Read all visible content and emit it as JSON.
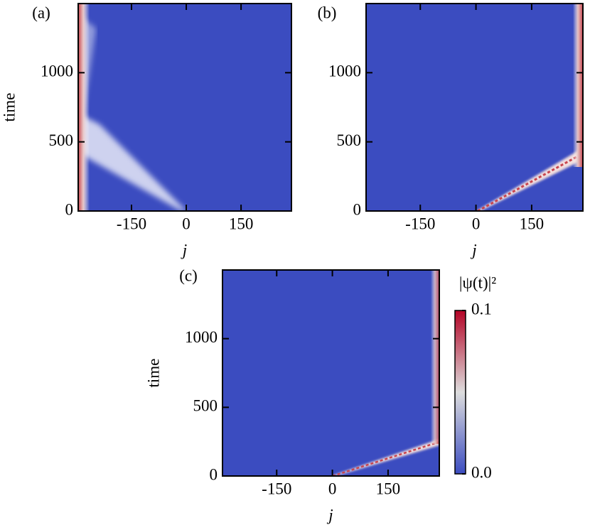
{
  "chart_data": [
    {
      "type": "heatmap",
      "title": "(a)",
      "xlabel": "j",
      "ylabel": "time",
      "xlim": [
        -296,
        288
      ],
      "ylim": [
        0,
        1500
      ],
      "xticks": [
        -150,
        0,
        150
      ],
      "yticks": [
        0,
        500,
        1000
      ],
      "colormap": [
        "#3b4cc0",
        "#dddddd",
        "#b40426"
      ]
    },
    {
      "type": "heatmap",
      "title": "(b)",
      "xlabel": "j",
      "xlim": [
        -296,
        288
      ],
      "ylim": [
        0,
        1500
      ],
      "xticks": [
        -150,
        0,
        150
      ],
      "yticks": [
        0,
        500,
        1000
      ],
      "colormap": [
        "#3b4cc0",
        "#dddddd",
        "#b40426"
      ]
    },
    {
      "type": "heatmap",
      "title": "(c)",
      "xlabel": "j",
      "ylabel": "time",
      "xlim": [
        -296,
        288
      ],
      "ylim": [
        0,
        1500
      ],
      "xticks": [
        -150,
        0,
        150
      ],
      "yticks": [
        0,
        500,
        1000
      ],
      "colormap": [
        "#3b4cc0",
        "#dddddd",
        "#b40426"
      ],
      "colorbar": {
        "label": "|ψ(t)|²",
        "ylim": [
          0,
          0.1
        ],
        "yticks": [
          {
            "value": 0,
            "label": "0.0"
          },
          {
            "value": 0.1,
            "label": "0.1"
          }
        ]
      }
    }
  ]
}
